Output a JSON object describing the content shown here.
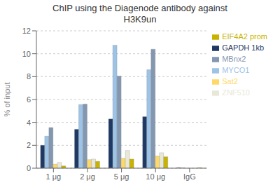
{
  "chart_data": {
    "type": "bar",
    "title": "ChIP using the Diagenode antibody against\nH3K9un",
    "ylabel": "% of input",
    "categories": [
      "1 μg",
      "2 μg",
      "5 μg",
      "10 μg",
      "IgG"
    ],
    "series": [
      {
        "name": "GAPDH 1kb",
        "color": "#1F3864",
        "values": [
          2.0,
          3.4,
          4.3,
          4.5,
          0.04
        ]
      },
      {
        "name": "MYCO1",
        "color": "#9DC3E6",
        "values": [
          2.8,
          5.55,
          10.75,
          8.6,
          0.03
        ]
      },
      {
        "name": "MBnx2",
        "color": "#8497B0",
        "values": [
          3.55,
          5.6,
          8.05,
          10.4,
          0.0
        ]
      },
      {
        "name": "Sat2",
        "color": "#FFD966",
        "values": [
          0.35,
          0.75,
          0.85,
          1.05,
          0.0
        ]
      },
      {
        "name": "ZNF510",
        "color": "#E8E8D8",
        "values": [
          0.5,
          0.8,
          1.55,
          1.35,
          0.0
        ]
      },
      {
        "name": "EIF4A2 prom",
        "color": "#C8B400",
        "values": [
          0.2,
          0.6,
          0.8,
          1.0,
          0.05
        ]
      }
    ],
    "ylim": [
      0,
      12
    ],
    "yticks": [
      0,
      2,
      4,
      6,
      8,
      10,
      12
    ],
    "grid": true,
    "legend": "right"
  }
}
